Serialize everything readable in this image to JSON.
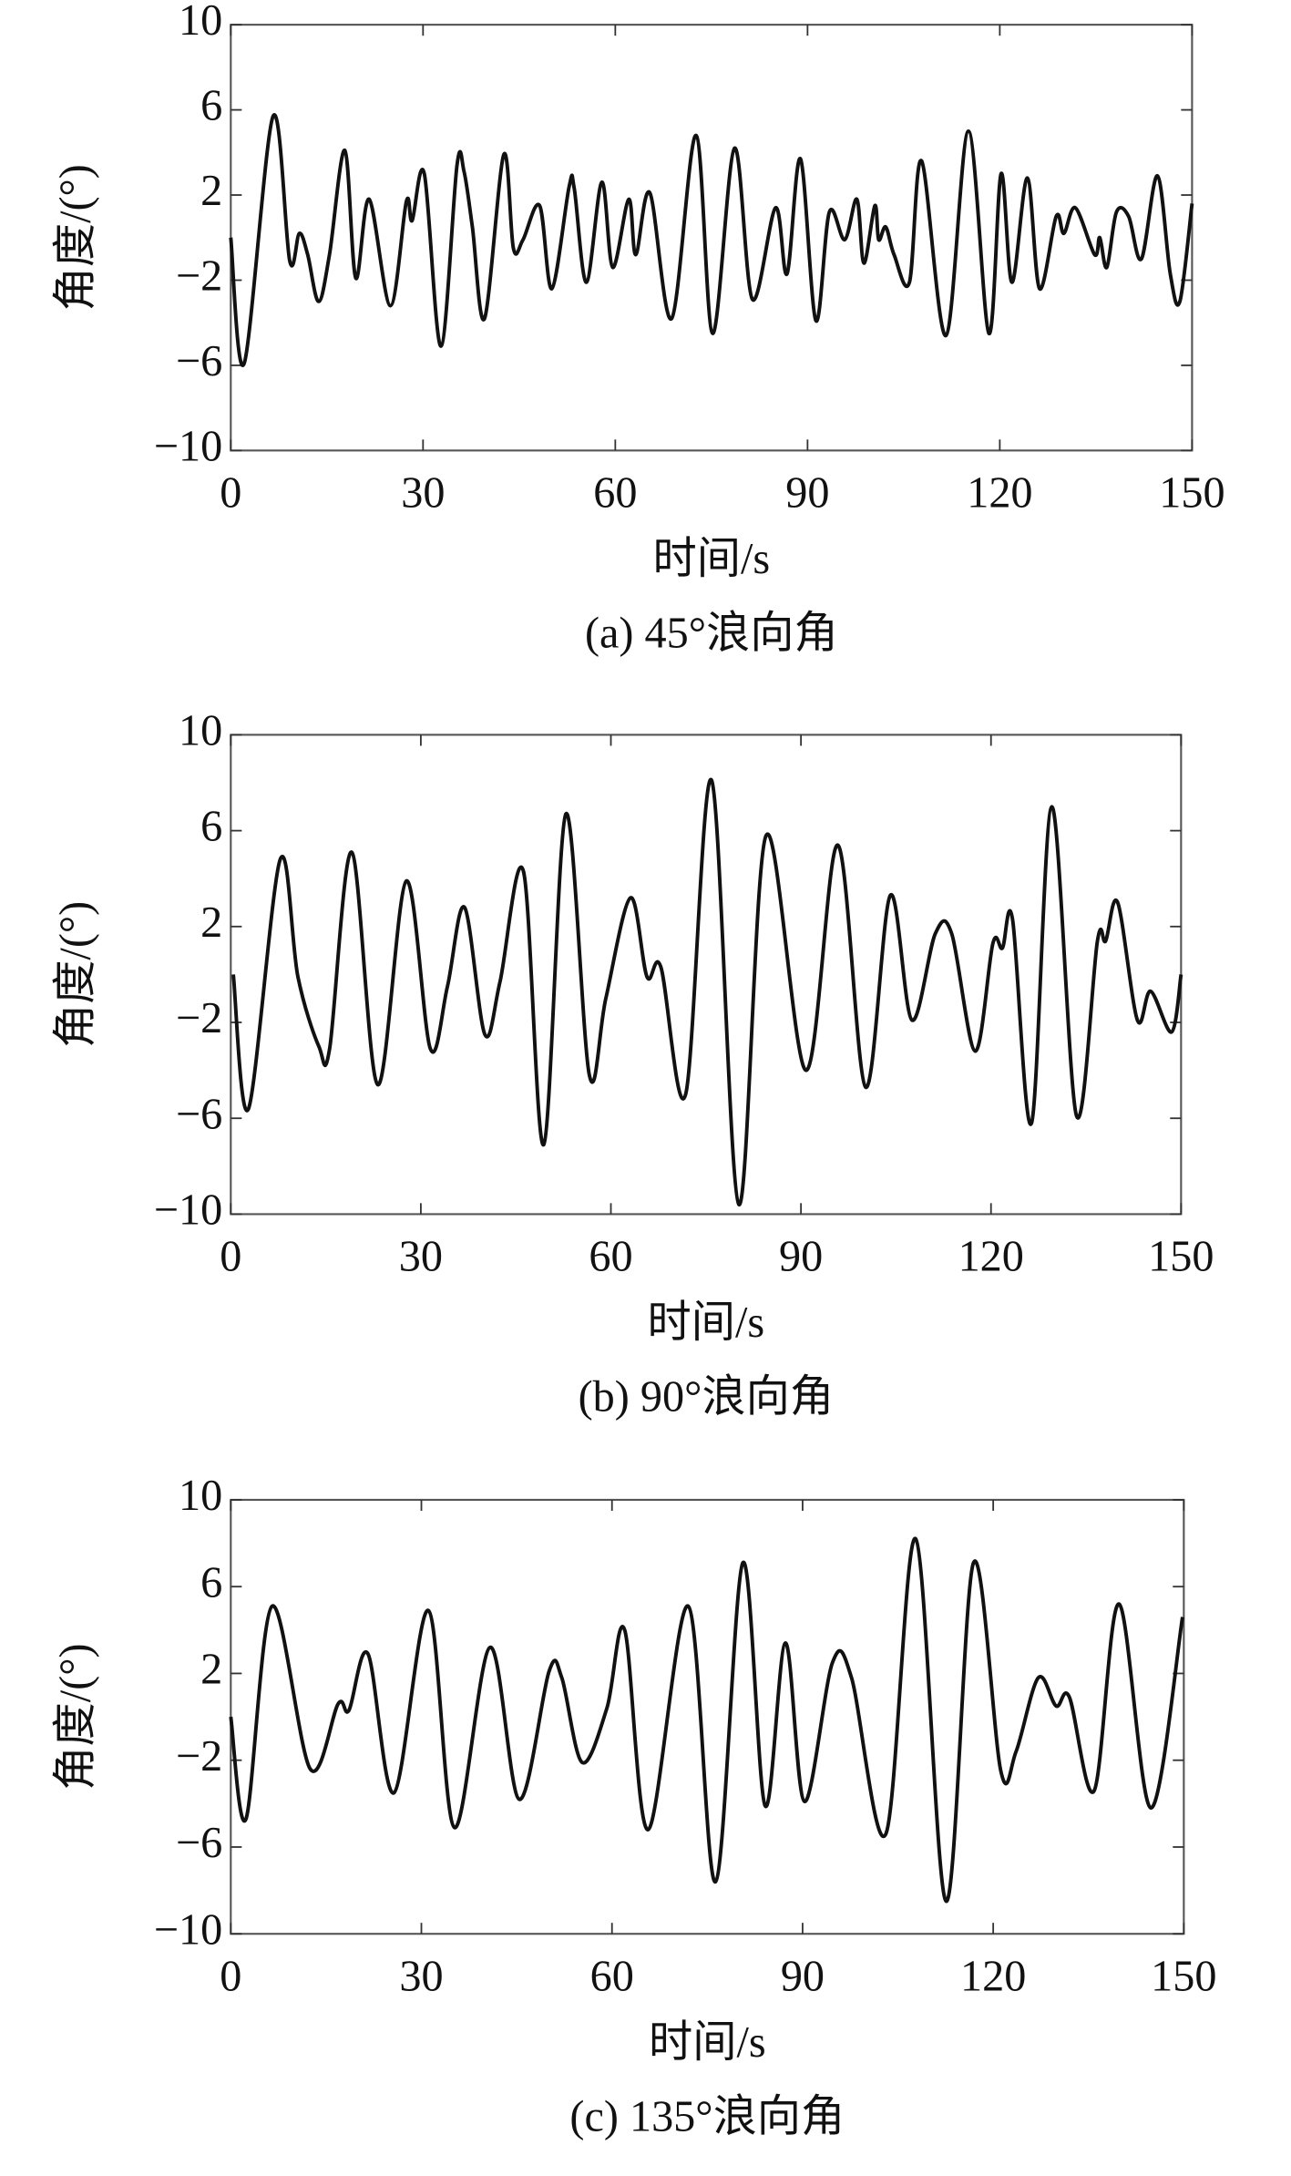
{
  "chart_data": [
    {
      "type": "line",
      "caption": "(a) 45°浪向角",
      "xlabel": "时间/s",
      "ylabel": "角度/(°)",
      "color": "#111111",
      "xlim": [
        0,
        150
      ],
      "ylim": [
        -10,
        10
      ],
      "xticks": [
        0,
        30,
        60,
        90,
        120,
        150
      ],
      "yticks": [
        {
          "value": -10,
          "label": "−10"
        },
        {
          "value": -6,
          "label": "−6"
        },
        {
          "value": -2,
          "label": "−2"
        },
        2,
        6,
        10
      ],
      "x": [
        0,
        2.1,
        6.6,
        9.2,
        10.7,
        12,
        13.7,
        15.4,
        17.8,
        19.5,
        21.6,
        24.9,
        27.4,
        28.3,
        30.2,
        32.8,
        35.3,
        36.4,
        37.7,
        39.6,
        42.6,
        44.1,
        45.6,
        48.2,
        50.1,
        52.8,
        53.6,
        55.5,
        57.9,
        59.6,
        62.1,
        63.2,
        65.4,
        68.8,
        72.6,
        75.2,
        78.6,
        81.4,
        85,
        86.8,
        88.9,
        91.3,
        93.4,
        95.8,
        97.7,
        98.8,
        100.5,
        101.1,
        102.2,
        103.5,
        105.9,
        107.8,
        111.6,
        115.1,
        118.3,
        120.2,
        121.9,
        124.3,
        126.2,
        128.8,
        130,
        131.8,
        134.8,
        135.6,
        136.7,
        138.2,
        140.1,
        142.1,
        144.6,
        146.6,
        148.1,
        150
      ],
      "values": [
        0,
        -5.9,
        5.7,
        -1.1,
        0.2,
        -0.8,
        -3.0,
        -0.8,
        4.1,
        -1.9,
        1.8,
        -3.2,
        1.7,
        0.8,
        3.0,
        -5.1,
        3.4,
        3.1,
        0.5,
        -3.8,
        3.9,
        -0.5,
        -0.1,
        1.5,
        -2.4,
        2.4,
        2.3,
        -2.1,
        2.6,
        -1.4,
        1.8,
        -0.8,
        2.1,
        -3.8,
        4.8,
        -4.5,
        4.2,
        -2.9,
        1.4,
        -1.7,
        3.7,
        -3.9,
        1.2,
        -0.1,
        1.8,
        -1.2,
        1.5,
        -0.1,
        0.5,
        -0.8,
        -2.1,
        3.6,
        -4.6,
        5.0,
        -4.5,
        3.0,
        -2.1,
        2.8,
        -2.4,
        1.0,
        0.2,
        1.4,
        -0.8,
        0.0,
        -1.4,
        1.2,
        1.0,
        -1.0,
        2.9,
        -1.7,
        -3.0,
        1.6
      ]
    },
    {
      "type": "line",
      "caption": "(b) 90°浪向角",
      "xlabel": "时间/s",
      "ylabel": "角度/(°)",
      "color": "#111111",
      "xlim": [
        0,
        150
      ],
      "ylim": [
        -10,
        10
      ],
      "xticks": [
        0,
        30,
        60,
        90,
        120,
        150
      ],
      "yticks": [
        {
          "value": -10,
          "label": "−10"
        },
        {
          "value": -6,
          "label": "−6"
        },
        {
          "value": -2,
          "label": "−2"
        },
        2,
        6,
        10
      ],
      "x": [
        0.4,
        2.8,
        7.8,
        10.6,
        13.9,
        15.6,
        19.1,
        23.2,
        27.7,
        31.5,
        34.2,
        36.9,
        40.1,
        42.5,
        46.2,
        49.4,
        52.9,
        56.6,
        59.2,
        63.1,
        65.7,
        67.9,
        71.8,
        75.9,
        80.2,
        84.5,
        90.8,
        95.8,
        100.2,
        104.1,
        107.5,
        111.2,
        113.8,
        117.5,
        120.3,
        121.8,
        123.4,
        126.4,
        129.6,
        133.5,
        136.8,
        138.1,
        140,
        143.1,
        145.2,
        148.5,
        150
      ],
      "values": [
        0,
        -5.6,
        4.8,
        -0.1,
        -3.0,
        -3.1,
        5.1,
        -4.6,
        3.9,
        -3.1,
        -0.5,
        2.8,
        -2.5,
        -0.3,
        4.3,
        -7.1,
        6.7,
        -4.2,
        -1.0,
        3.2,
        -0.1,
        0.3,
        -5.0,
        8.1,
        -9.6,
        5.8,
        -4.0,
        5.4,
        -4.7,
        3.3,
        -1.9,
        1.7,
        1.7,
        -3.2,
        1.3,
        1.1,
        2.3,
        -6.2,
        7.0,
        -5.9,
        1.4,
        1.4,
        3.0,
        -1.9,
        -0.7,
        -2.4,
        0
      ]
    },
    {
      "type": "line",
      "caption": "(c) 135°浪向角",
      "xlabel": "时间/s",
      "ylabel": "角度/(°)",
      "color": "#111111",
      "xlim": [
        0,
        150
      ],
      "ylim": [
        -10,
        10
      ],
      "xticks": [
        0,
        30,
        60,
        90,
        120,
        150
      ],
      "yticks": [
        {
          "value": -10,
          "label": "−10"
        },
        {
          "value": -6,
          "label": "−6"
        },
        {
          "value": -2,
          "label": "−2"
        },
        2,
        6,
        10
      ],
      "x": [
        0,
        2.4,
        6.5,
        12.5,
        16.9,
        18.6,
        21.6,
        25.7,
        31.1,
        35.2,
        40.8,
        45.4,
        50.1,
        52.1,
        55.3,
        59.2,
        62,
        65.7,
        72,
        76.3,
        80.6,
        84.1,
        87.3,
        90.3,
        94.7,
        97.7,
        103.1,
        107.8,
        112.6,
        116.9,
        121.2,
        123.6,
        127.1,
        129.9,
        132,
        135.9,
        139.8,
        144.8,
        149.8
      ],
      "values": [
        0,
        -4.7,
        5.1,
        -2.4,
        0.6,
        0.3,
        2.9,
        -3.5,
        4.9,
        -5.1,
        3.2,
        -3.8,
        2.1,
        1.8,
        -2.1,
        0.4,
        4.0,
        -5.2,
        5.1,
        -7.6,
        7.1,
        -4.1,
        3.4,
        -3.9,
        2.5,
        1.8,
        -5.4,
        8.2,
        -8.5,
        7.1,
        -2.5,
        -1.6,
        1.8,
        0.5,
        0.9,
        -3.4,
        5.2,
        -4.2,
        4.6
      ]
    }
  ]
}
